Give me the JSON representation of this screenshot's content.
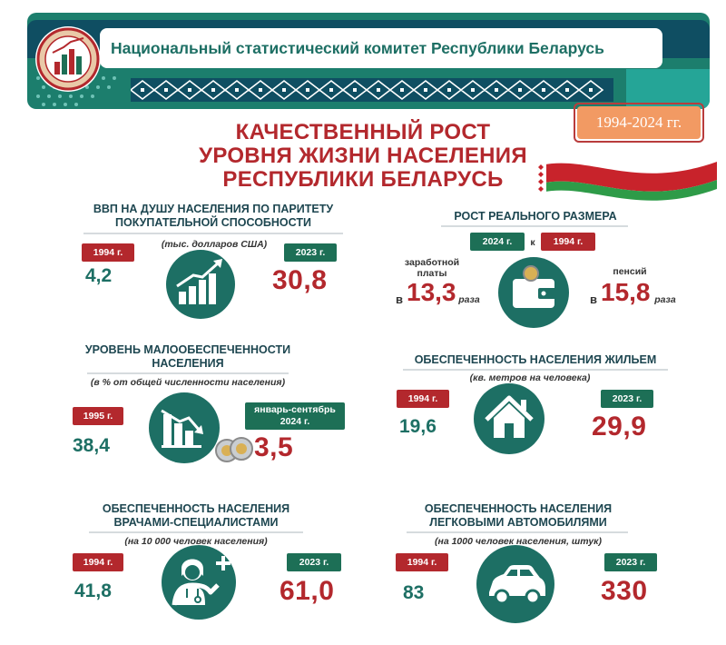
{
  "header": {
    "org_name": "Национальный статистический комитет Республики Беларусь",
    "years": "1994-2024 гг."
  },
  "title": {
    "line1": "КАЧЕСТВЕННЫЙ РОСТ",
    "line2": "УРОВНЯ ЖИЗНИ НАСЕЛЕНИЯ",
    "line3": "РЕСПУБЛИКИ БЕЛАРУСЬ"
  },
  "colors": {
    "accent_red": "#b3282d",
    "accent_green": "#1d6f64",
    "badge_orange": "#f29a63"
  },
  "gdp": {
    "title1": "ВВП НА ДУШУ НАСЕЛЕНИЯ ПО ПАРИТЕТУ",
    "title2": "ПОКУПАТЕЛЬНОЙ СПОСОБНОСТИ",
    "note": "(тыс. долларов США)",
    "year_from": "1994 г.",
    "value_from": "4,2",
    "year_to": "2023 г.",
    "value_to": "30,8",
    "icon": "growth-chart-icon"
  },
  "real_growth": {
    "title": "РОСТ РЕАЛЬНОГО РАЗМЕРА",
    "year_to": "2024 г.",
    "connector": "к",
    "year_from": "1994 г.",
    "wage_label1": "заработной",
    "wage_label2": "платы",
    "pension_label": "пенсий",
    "prefix": "в",
    "wage_value": "13,3",
    "pension_value": "15,8",
    "unit": "раза",
    "icon": "wallet-icon"
  },
  "poverty": {
    "title1": "УРОВЕНЬ МАЛООБЕСПЕЧЕННОСТИ",
    "title2": "НАСЕЛЕНИЯ",
    "note": "(в % от общей численности населения)",
    "year_from": "1995 г.",
    "value_from": "38,4",
    "period_to1": "январь-сентябрь",
    "period_to2": "2024 г.",
    "value_to": "3,5",
    "icon": "declining-chart-icon"
  },
  "housing": {
    "title": "ОБЕСПЕЧЕННОСТЬ НАСЕЛЕНИЯ ЖИЛЬЕМ",
    "note": "(кв. метров на человека)",
    "year_from": "1994 г.",
    "value_from": "19,6",
    "year_to": "2023 г.",
    "value_to": "29,9",
    "icon": "house-icon"
  },
  "doctors": {
    "title1": "ОБЕСПЕЧЕННОСТЬ НАСЕЛЕНИЯ",
    "title2": "ВРАЧАМИ-СПЕЦИАЛИСТАМИ",
    "note": "(на 10 000 человек населения)",
    "year_from": "1994 г.",
    "value_from": "41,8",
    "year_to": "2023 г.",
    "value_to": "61,0",
    "icon": "doctor-icon"
  },
  "cars": {
    "title1": "ОБЕСПЕЧЕННОСТЬ НАСЕЛЕНИЯ",
    "title2": "ЛЕГКОВЫМИ АВТОМОБИЛЯМИ",
    "note": "(на 1000 человек населения, штук)",
    "year_from": "1994 г.",
    "value_from": "83",
    "year_to": "2023 г.",
    "value_to": "330",
    "icon": "car-icon"
  }
}
